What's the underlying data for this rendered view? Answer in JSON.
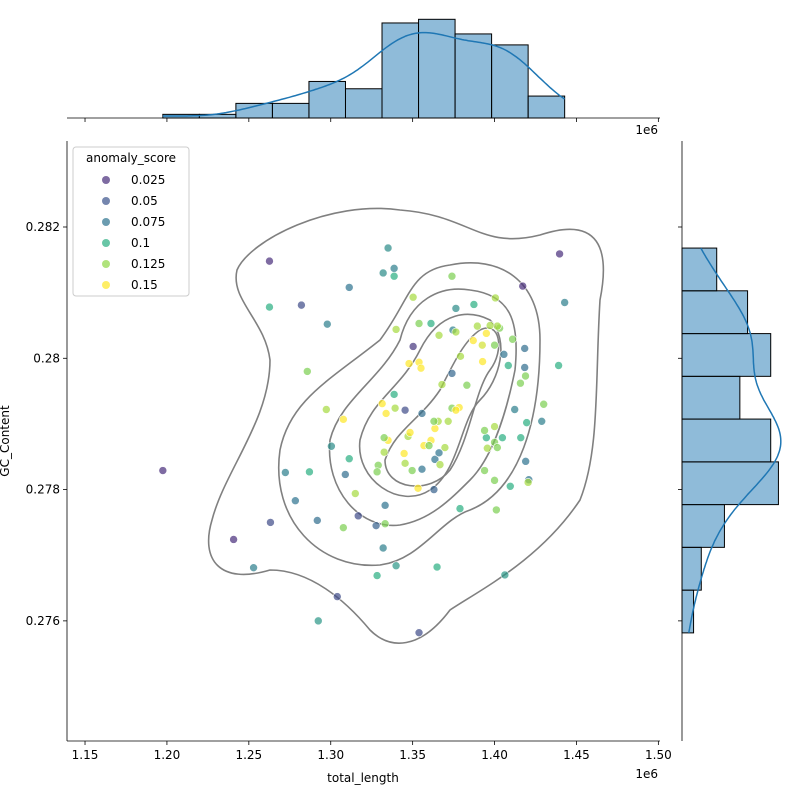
{
  "chart_data": [
    {
      "type": "scatter",
      "xlabel": "total_length",
      "ylabel": "GC_Content",
      "x_offset_label": "1e6",
      "xlim": [
        1139000,
        1501000
      ],
      "ylim": [
        0.27417,
        0.28331
      ],
      "xticks": [
        {
          "value": 1150000,
          "label": "1.15"
        },
        {
          "value": 1200000,
          "label": "1.20"
        },
        {
          "value": 1250000,
          "label": "1.25"
        },
        {
          "value": 1300000,
          "label": "1.30"
        },
        {
          "value": 1350000,
          "label": "1.35"
        },
        {
          "value": 1400000,
          "label": "1.40"
        },
        {
          "value": 1450000,
          "label": "1.45"
        },
        {
          "value": 1500000,
          "label": "1.50"
        }
      ],
      "yticks": [
        0.276,
        0.278,
        0.28,
        0.282
      ],
      "legend": {
        "title": "anomaly_score",
        "loc": "upper left",
        "values": [
          0.025,
          0.05,
          0.075,
          0.1,
          0.125,
          0.15
        ],
        "colors": [
          "#472c7a",
          "#3b528b",
          "#2c728e",
          "#28ae80",
          "#8fd744",
          "#fde725"
        ]
      },
      "series": [
        {
          "x": [
            1197500,
            1240700,
            1262600,
            1439700,
            1417200,
            1350300,
            1263200,
            1282100,
            1304000,
            1353900,
            1316800,
            1345400,
            1363000,
            1374000,
            1418400,
            1418400,
            1442800,
            1335000,
            1338700,
            1311300,
            1297900,
            1252900,
            1292400,
            1291800,
            1278400,
            1272300,
            1308900,
            1300400,
            1311300,
            1327700,
            1332000,
            1333200,
            1339900,
            1364900,
            1328300,
            1332000,
            1338700,
            1355700,
            1355700,
            1363600,
            1366100,
            1376400,
            1374600,
            1387400,
            1405700,
            1412300,
            1419000,
            1420900,
            1428800,
            1439100,
            1406300,
            1378900,
            1416000,
            1419600,
            1430000,
            1400000,
            1403100,
            1411000,
            1415800,
            1418900,
            1408400,
            1401700,
            1400500,
            1389500,
            1379200,
            1387000,
            1392500,
            1395000,
            1397300,
            1376400,
            1366100,
            1361200,
            1353900,
            1350300,
            1339900,
            1353900,
            1355100,
            1347800,
            1367900,
            1392700,
            1378400,
            1371700,
            1365600,
            1363600,
            1361200,
            1356900,
            1360000,
            1369700,
            1366700,
            1344800,
            1345400,
            1349700,
            1353300,
            1347200,
            1348400,
            1331400,
            1333800,
            1339300,
            1335000,
            1332600,
            1329000,
            1332600,
            1307700,
            1297300,
            1315000,
            1307700,
            1333200,
            1395000,
            1400000,
            1401700,
            1404800,
            1395600,
            1400000,
            1393900,
            1393900,
            1400000,
            1409600,
            1420500,
            1401100,
            1374000,
            1262600,
            1285700,
            1374000,
            1383100,
            1363000,
            1338700,
            1328300,
            1287000,
            1376400
          ],
          "y": [
            0.27829,
            0.27724,
            0.28148,
            0.28159,
            0.2811,
            0.28018,
            0.2775,
            0.28081,
            0.27637,
            0.27582,
            0.2776,
            0.27921,
            0.278,
            0.27977,
            0.28015,
            0.27986,
            0.28085,
            0.28168,
            0.28137,
            0.28108,
            0.28052,
            0.27681,
            0.276,
            0.27753,
            0.27783,
            0.27826,
            0.27823,
            0.27866,
            0.27847,
            0.27745,
            0.27711,
            0.27776,
            0.27684,
            0.27682,
            0.27669,
            0.2813,
            0.28125,
            0.27916,
            0.27831,
            0.27846,
            0.27856,
            0.28076,
            0.28043,
            0.28082,
            0.28006,
            0.27922,
            0.27843,
            0.27815,
            0.27904,
            0.27989,
            0.2767,
            0.27771,
            0.27879,
            0.27902,
            0.2793,
            0.2802,
            0.28046,
            0.28029,
            0.27962,
            0.27973,
            0.27989,
            0.28049,
            0.28092,
            0.28049,
            0.28003,
            0.28027,
            0.2802,
            0.28038,
            0.2805,
            0.2804,
            0.28035,
            0.28053,
            0.28053,
            0.28093,
            0.28044,
            0.27994,
            0.27985,
            0.27992,
            0.2796,
            0.27995,
            0.27925,
            0.27904,
            0.27904,
            0.27893,
            0.27875,
            0.27867,
            0.27867,
            0.27864,
            0.27838,
            0.27855,
            0.2784,
            0.27829,
            0.27802,
            0.27881,
            0.27887,
            0.27931,
            0.27916,
            0.27924,
            0.27875,
            0.27857,
            0.27837,
            0.27879,
            0.27907,
            0.27922,
            0.27794,
            0.27742,
            0.27748,
            0.27879,
            0.27872,
            0.27864,
            0.27879,
            0.27863,
            0.27814,
            0.27829,
            0.2789,
            0.27896,
            0.27805,
            0.27811,
            0.27769,
            0.28125,
            0.28078,
            0.2798,
            0.27924,
            0.27959,
            0.27904,
            0.27945,
            0.27827,
            0.27827,
            0.27921
          ],
          "anomaly_score": [
            0.02,
            0.02,
            0.02,
            0.02,
            0.02,
            0.03,
            0.045,
            0.045,
            0.045,
            0.045,
            0.045,
            0.045,
            0.06,
            0.065,
            0.07,
            0.07,
            0.08,
            0.085,
            0.08,
            0.075,
            0.08,
            0.08,
            0.09,
            0.07,
            0.075,
            0.08,
            0.07,
            0.085,
            0.1,
            0.06,
            0.08,
            0.075,
            0.09,
            0.1,
            0.1,
            0.085,
            0.1,
            0.07,
            0.075,
            0.075,
            0.075,
            0.085,
            0.08,
            0.1,
            0.075,
            0.08,
            0.075,
            0.075,
            0.08,
            0.1,
            0.09,
            0.1,
            0.1,
            0.1,
            0.12,
            0.12,
            0.12,
            0.12,
            0.12,
            0.12,
            0.1,
            0.13,
            0.13,
            0.13,
            0.13,
            0.15,
            0.14,
            0.15,
            0.13,
            0.13,
            0.13,
            0.1,
            0.12,
            0.13,
            0.13,
            0.15,
            0.15,
            0.15,
            0.13,
            0.15,
            0.15,
            0.13,
            0.13,
            0.15,
            0.15,
            0.15,
            0.12,
            0.13,
            0.13,
            0.15,
            0.13,
            0.12,
            0.15,
            0.13,
            0.15,
            0.15,
            0.15,
            0.13,
            0.15,
            0.13,
            0.12,
            0.12,
            0.15,
            0.13,
            0.13,
            0.12,
            0.12,
            0.1,
            0.12,
            0.12,
            0.1,
            0.13,
            0.12,
            0.12,
            0.12,
            0.13,
            0.1,
            0.13,
            0.12,
            0.12,
            0.1,
            0.12,
            0.12,
            0.12,
            0.12,
            0.1,
            0.12,
            0.1,
            0.15
          ]
        }
      ]
    },
    {
      "type": "histogram",
      "orientation": "vertical",
      "x_offset_label": "1e6",
      "color": "#1f77b4",
      "bins": [
        1197500,
        1219800,
        1242100,
        1264400,
        1286700,
        1309000,
        1331300,
        1353600,
        1375900,
        1398200,
        1420500,
        1442800
      ],
      "counts": [
        1,
        1,
        4,
        4,
        10,
        8,
        26,
        27,
        23,
        20,
        6
      ],
      "ylim": [
        0,
        29
      ]
    },
    {
      "type": "histogram",
      "orientation": "horizontal",
      "color": "#1f77b4",
      "bins": [
        0.275817,
        0.276468,
        0.27712,
        0.277771,
        0.278422,
        0.279074,
        0.279725,
        0.280376,
        0.281028,
        0.281679
      ],
      "counts": [
        3,
        5,
        11,
        25,
        23,
        15,
        23,
        17,
        9
      ],
      "xlim": [
        0,
        28
      ]
    }
  ]
}
